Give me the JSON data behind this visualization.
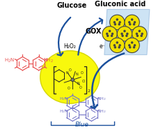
{
  "background_color": "#ffffff",
  "glucose_label": "Glucose",
  "gluconic_acid_label": "Gluconic acid",
  "gox_label": "GOX",
  "h2o2_label": "H₂O₂",
  "electron_label": "e⁻",
  "blue_label": "Blue",
  "arrow_color": "#1a4f9c",
  "red_molecule_color": "#e85555",
  "blue_molecule_color": "#7878c8",
  "yellow_blob_color": "#f8f800",
  "yellow_blob_edge": "#d4d400",
  "nanoparticle_yellow": "#f0e000",
  "nanoparticle_dark": "#444444",
  "nanoparticle_bg_color": "#b8d8f0",
  "fe_complex_color": "#222222",
  "label_fontsize": 7,
  "gox_fontsize": 7,
  "small_fontsize": 5.5
}
